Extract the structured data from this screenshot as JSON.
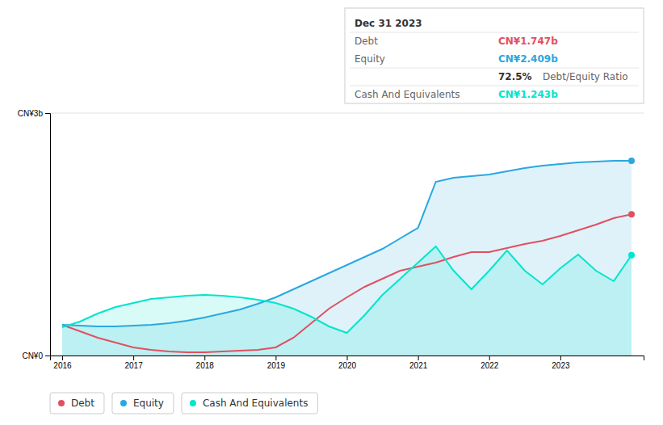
{
  "chart_data": {
    "type": "area",
    "x": [
      2016.0,
      2016.25,
      2016.5,
      2016.75,
      2017.0,
      2017.25,
      2017.5,
      2017.75,
      2018.0,
      2018.25,
      2018.5,
      2018.75,
      2019.0,
      2019.25,
      2019.5,
      2019.75,
      2020.0,
      2020.25,
      2020.5,
      2020.75,
      2021.0,
      2021.25,
      2021.5,
      2021.75,
      2022.0,
      2022.25,
      2022.5,
      2022.75,
      2023.0,
      2023.25,
      2023.5,
      2023.75,
      2024.0
    ],
    "xlim": [
      2015.83,
      2024.17
    ],
    "xticks": [
      2016,
      2017,
      2018,
      2019,
      2020,
      2021,
      2022,
      2023
    ],
    "ylim": [
      0,
      3.0
    ],
    "yticks": [
      {
        "value": 0,
        "label": "CN¥0"
      },
      {
        "value": 3.0,
        "label": "CN¥3b"
      }
    ],
    "grid": true,
    "legend": "bottom",
    "series": [
      {
        "name": "Debt",
        "color": "#e05060",
        "type": "line",
        "values": [
          0.38,
          0.3,
          0.22,
          0.16,
          0.1,
          0.07,
          0.05,
          0.04,
          0.04,
          0.05,
          0.06,
          0.07,
          0.1,
          0.22,
          0.4,
          0.58,
          0.72,
          0.85,
          0.95,
          1.05,
          1.1,
          1.15,
          1.22,
          1.28,
          1.28,
          1.33,
          1.38,
          1.42,
          1.48,
          1.55,
          1.62,
          1.7,
          1.747
        ]
      },
      {
        "name": "Equity",
        "color": "#29a8e0",
        "type": "area",
        "values": [
          0.38,
          0.37,
          0.36,
          0.36,
          0.37,
          0.38,
          0.4,
          0.43,
          0.47,
          0.52,
          0.57,
          0.64,
          0.72,
          0.82,
          0.92,
          1.02,
          1.12,
          1.22,
          1.32,
          1.45,
          1.58,
          2.15,
          2.2,
          2.22,
          2.24,
          2.28,
          2.32,
          2.35,
          2.37,
          2.39,
          2.4,
          2.41,
          2.409
        ]
      },
      {
        "name": "Cash And Equivalents",
        "color": "#00e5cc",
        "type": "area",
        "values": [
          0.35,
          0.42,
          0.52,
          0.6,
          0.65,
          0.7,
          0.72,
          0.74,
          0.75,
          0.74,
          0.72,
          0.69,
          0.65,
          0.58,
          0.48,
          0.36,
          0.28,
          0.5,
          0.75,
          0.95,
          1.15,
          1.35,
          1.05,
          0.82,
          1.05,
          1.3,
          1.05,
          0.88,
          1.08,
          1.25,
          1.05,
          0.92,
          1.243
        ]
      }
    ],
    "annotations": [
      "Dec 31 2023",
      "Debt",
      "CN¥1.747b",
      "Equity",
      "CN¥2.409b",
      "72.5%",
      "Debt/Equity Ratio",
      "Cash And Equivalents",
      "CN¥1.243b"
    ]
  }
}
